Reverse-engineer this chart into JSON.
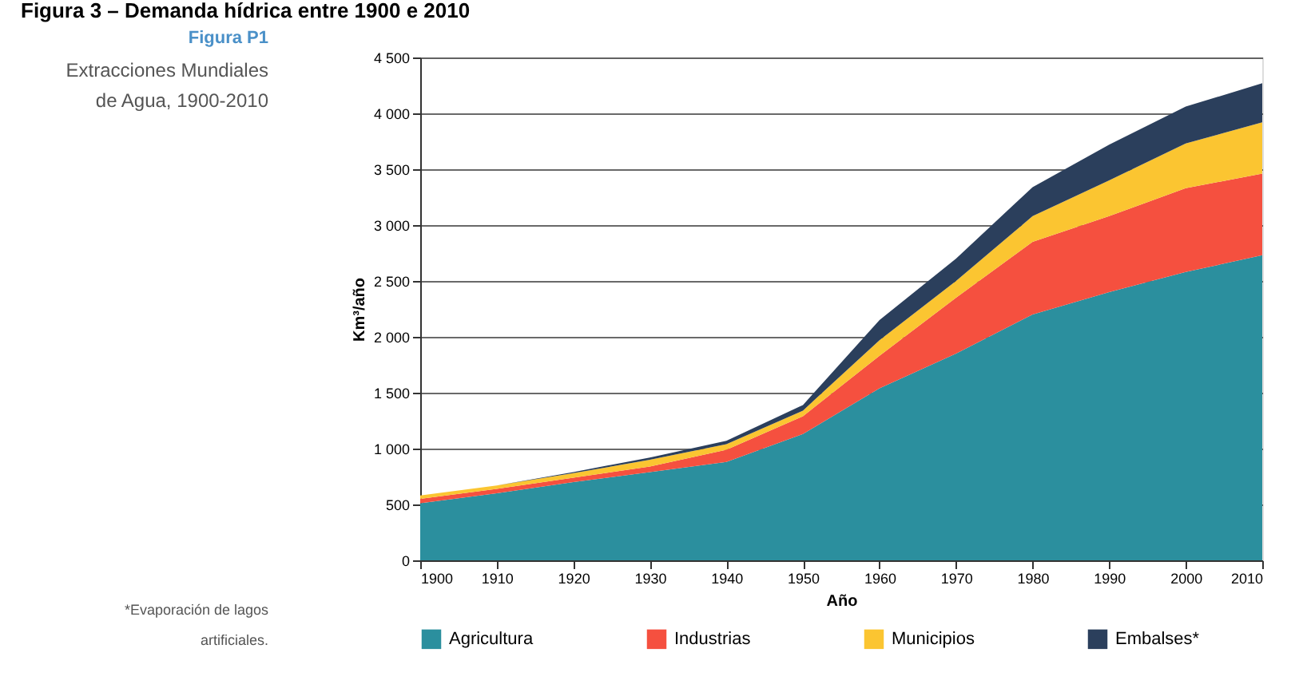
{
  "chart_data": {
    "type": "area",
    "title": "Figura P1",
    "subtitle": "Extracciones Mundiales de Agua, 1900-2010",
    "xlabel": "Año",
    "ylabel": "Km³/año",
    "annotations": [
      "Figura 3 – Demanda hídrica entre 1900 e 2010",
      "*Evaporación de lagos artificiales."
    ],
    "x": [
      1900,
      1910,
      1920,
      1930,
      1940,
      1950,
      1960,
      1970,
      1980,
      1990,
      2000,
      2010
    ],
    "stacked": true,
    "series": [
      {
        "name": "Agricultura",
        "color": "#2b8f9e",
        "values": [
          510,
          600,
          700,
          790,
          880,
          1130,
          1540,
          1850,
          2200,
          2400,
          2580,
          2730
        ]
      },
      {
        "name": "Industrias",
        "color": "#f5503f",
        "values": [
          40,
          40,
          40,
          50,
          110,
          160,
          290,
          500,
          650,
          680,
          750,
          730
        ]
      },
      {
        "name": "Municipios",
        "color": "#fbc531",
        "values": [
          30,
          30,
          40,
          60,
          50,
          50,
          140,
          150,
          230,
          320,
          400,
          460
        ]
      },
      {
        "name": "Embalses*",
        "color": "#2b3f5c",
        "values": [
          0,
          0,
          10,
          20,
          30,
          50,
          180,
          200,
          260,
          320,
          330,
          350
        ]
      }
    ],
    "xlim": [
      1900,
      2010
    ],
    "xticks": [
      1900,
      1910,
      1920,
      1930,
      1940,
      1950,
      1960,
      1970,
      1980,
      1990,
      2000,
      2010
    ],
    "ylim": [
      0,
      4500
    ],
    "yticks": [
      0,
      500,
      {
        "value": 1000,
        "label": "1 000"
      },
      {
        "value": 1500,
        "label": "1 500"
      },
      {
        "value": 2000,
        "label": "2 000"
      },
      {
        "value": 2500,
        "label": "2 500"
      },
      {
        "value": 3000,
        "label": "3 000"
      },
      {
        "value": 3500,
        "label": "3 500"
      },
      {
        "value": 4000,
        "label": "4 000"
      },
      {
        "value": 4500,
        "label": "4 500"
      }
    ],
    "grid": "y",
    "legend": "bottom"
  }
}
